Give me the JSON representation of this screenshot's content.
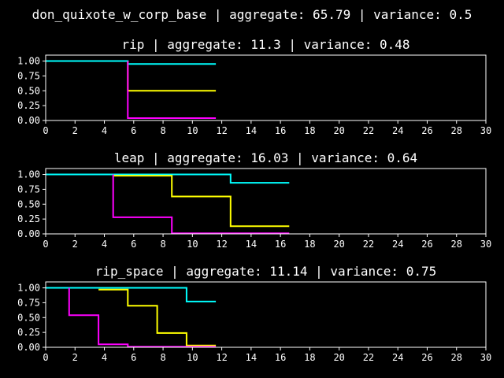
{
  "suptitle": "don_quixote_w_corp_base | aggregate: 65.79 | variance: 0.5",
  "colors": {
    "background": "#000000",
    "foreground": "#ffffff",
    "cyan": "#00ffff",
    "yellow": "#ffff00",
    "magenta": "#ff00ff"
  },
  "chart_data": [
    {
      "type": "line",
      "step": "post",
      "title": "rip | aggregate: 11.3 | variance: 0.48",
      "xlim": [
        0,
        30
      ],
      "ylim": [
        0,
        1.1
      ],
      "xticks": [
        0,
        2,
        4,
        6,
        8,
        10,
        12,
        14,
        16,
        18,
        20,
        22,
        24,
        26,
        28,
        30
      ],
      "yticks": [
        "0.00",
        "0.25",
        "0.50",
        "0.75",
        "1.00"
      ],
      "grid": false,
      "series": [
        {
          "color": "#00ffff",
          "x": [
            0,
            5.6,
            11.6
          ],
          "y": [
            1.0,
            0.95,
            0.95
          ]
        },
        {
          "color": "#ffff00",
          "x": [
            5.6,
            5.6,
            11.6
          ],
          "y": [
            1.0,
            0.5,
            0.5
          ]
        },
        {
          "color": "#ff00ff",
          "x": [
            5.6,
            5.6,
            11.6
          ],
          "y": [
            1.0,
            0.04,
            0.04
          ]
        }
      ]
    },
    {
      "type": "line",
      "step": "post",
      "title": "leap | aggregate: 16.03 | variance: 0.64",
      "xlim": [
        0,
        30
      ],
      "ylim": [
        0,
        1.1
      ],
      "xticks": [
        0,
        2,
        4,
        6,
        8,
        10,
        12,
        14,
        16,
        18,
        20,
        22,
        24,
        26,
        28,
        30
      ],
      "yticks": [
        "0.00",
        "0.25",
        "0.50",
        "0.75",
        "1.00"
      ],
      "grid": false,
      "series": [
        {
          "color": "#00ffff",
          "x": [
            0,
            12.6,
            16.6
          ],
          "y": [
            1.0,
            0.86,
            0.86
          ]
        },
        {
          "color": "#ffff00",
          "x": [
            4.6,
            8.6,
            12.6,
            16.6
          ],
          "y": [
            0.98,
            0.63,
            0.13,
            0.13
          ]
        },
        {
          "color": "#ff00ff",
          "x": [
            4.6,
            4.6,
            8.6,
            16.6
          ],
          "y": [
            1.0,
            0.28,
            0.01,
            0.01
          ]
        }
      ]
    },
    {
      "type": "line",
      "step": "post",
      "title": "rip_space | aggregate: 11.14 | variance: 0.75",
      "xlim": [
        0,
        30
      ],
      "ylim": [
        0,
        1.1
      ],
      "xticks": [
        0,
        2,
        4,
        6,
        8,
        10,
        12,
        14,
        16,
        18,
        20,
        22,
        24,
        26,
        28,
        30
      ],
      "yticks": [
        "0.00",
        "0.25",
        "0.50",
        "0.75",
        "1.00"
      ],
      "grid": false,
      "series": [
        {
          "color": "#00ffff",
          "x": [
            0,
            9.6,
            11.6
          ],
          "y": [
            1.0,
            0.77,
            0.77
          ]
        },
        {
          "color": "#ffff00",
          "x": [
            3.6,
            5.6,
            7.6,
            9.6,
            11.6
          ],
          "y": [
            0.97,
            0.7,
            0.24,
            0.03,
            0.03
          ]
        },
        {
          "color": "#ff00ff",
          "x": [
            1.6,
            1.6,
            3.6,
            5.6,
            11.6
          ],
          "y": [
            1.0,
            0.54,
            0.05,
            0.01,
            0.01
          ]
        }
      ]
    }
  ]
}
